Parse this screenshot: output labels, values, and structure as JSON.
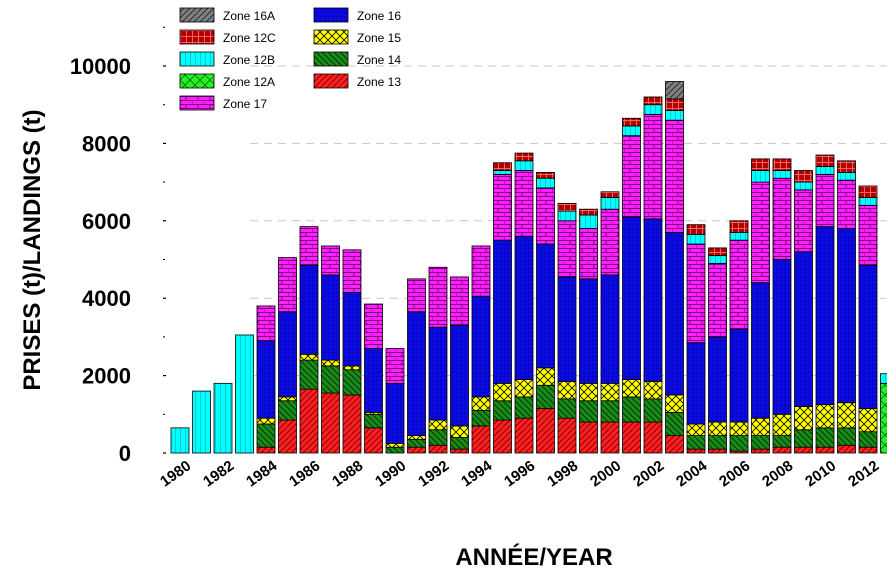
{
  "chart_data": {
    "type": "bar",
    "stacked": true,
    "xlabel": "ANNÉE/YEAR",
    "ylabel": "PRISES (t)/LANDINGS (t)",
    "ylim": [
      0,
      11000
    ],
    "y_ticks": [
      0,
      2000,
      4000,
      6000,
      8000,
      10000
    ],
    "x_tick_labels": [
      "1980",
      "1982",
      "1984",
      "1986",
      "1988",
      "1990",
      "1992",
      "1994",
      "1996",
      "1998",
      "2000",
      "2002",
      "2004",
      "2006",
      "2008",
      "2010",
      "2012"
    ],
    "grid": "horizontal dashed",
    "legend_position": "top-left",
    "categories": [
      "1980",
      "1981",
      "1982",
      "1983",
      "1984",
      "1985",
      "1986",
      "1987",
      "1988",
      "1989",
      "1990",
      "1991",
      "1992",
      "1993",
      "1994",
      "1995",
      "1996",
      "1997",
      "1998",
      "1999",
      "2000",
      "2001",
      "2002",
      "2003",
      "2004",
      "2005",
      "2006",
      "2007",
      "2008",
      "2009",
      "2010",
      "2011",
      "2012",
      "2013"
    ],
    "series": [
      {
        "name": "Zone 13",
        "color": "#ff2020",
        "values": [
          0,
          0,
          0,
          0,
          150,
          850,
          1650,
          1550,
          1500,
          650,
          0,
          150,
          200,
          100,
          700,
          850,
          900,
          1150,
          900,
          800,
          800,
          800,
          800,
          450,
          100,
          100,
          50,
          100,
          150,
          150,
          150,
          200,
          150,
          0
        ]
      },
      {
        "name": "Zone 14",
        "color": "#1a8c1a",
        "values": [
          0,
          0,
          0,
          0,
          600,
          500,
          750,
          700,
          650,
          350,
          150,
          200,
          400,
          300,
          400,
          500,
          550,
          600,
          500,
          550,
          550,
          650,
          600,
          600,
          350,
          350,
          400,
          350,
          300,
          450,
          500,
          450,
          400,
          0
        ]
      },
      {
        "name": "Zone 15",
        "color": "#ffff00",
        "values": [
          0,
          0,
          0,
          0,
          150,
          100,
          150,
          150,
          100,
          50,
          100,
          100,
          250,
          300,
          350,
          450,
          450,
          450,
          450,
          450,
          450,
          450,
          450,
          450,
          300,
          350,
          350,
          450,
          550,
          600,
          600,
          650,
          600,
          0
        ]
      },
      {
        "name": "Zone 16",
        "color": "#0a0ae0",
        "values": [
          0,
          0,
          0,
          0,
          2000,
          2200,
          2300,
          2200,
          1900,
          1650,
          1550,
          3200,
          2400,
          2600,
          2600,
          3700,
          3700,
          3200,
          2700,
          2700,
          2800,
          4200,
          4200,
          4200,
          2100,
          2200,
          2400,
          3500,
          4000,
          4000,
          4600,
          4500,
          3700,
          0
        ]
      },
      {
        "name": "Zone 17",
        "color": "#ff20ff",
        "values": [
          0,
          0,
          0,
          0,
          900,
          1400,
          1000,
          750,
          1100,
          1150,
          900,
          850,
          1550,
          1250,
          1300,
          1700,
          1700,
          1450,
          1450,
          1300,
          1700,
          2100,
          2700,
          2900,
          2550,
          1900,
          2300,
          2600,
          2100,
          1600,
          1350,
          1250,
          1550,
          0
        ]
      },
      {
        "name": "Zone 12A",
        "color": "#28f028",
        "values": [
          0,
          0,
          0,
          0,
          0,
          0,
          0,
          0,
          0,
          0,
          0,
          0,
          0,
          0,
          0,
          0,
          0,
          0,
          0,
          0,
          0,
          0,
          0,
          0,
          0,
          0,
          0,
          0,
          0,
          0,
          0,
          0,
          0,
          1800
        ]
      },
      {
        "name": "Zone 12B",
        "color": "#00ffff",
        "values": [
          650,
          1600,
          1800,
          3050,
          0,
          0,
          0,
          0,
          0,
          0,
          0,
          0,
          0,
          0,
          0,
          100,
          250,
          250,
          250,
          350,
          300,
          250,
          250,
          250,
          250,
          200,
          200,
          300,
          200,
          200,
          200,
          200,
          200,
          250
        ]
      },
      {
        "name": "Zone 12C",
        "color": "#b00000",
        "values": [
          0,
          0,
          0,
          0,
          0,
          0,
          0,
          0,
          0,
          0,
          0,
          0,
          0,
          0,
          0,
          200,
          200,
          150,
          200,
          150,
          150,
          200,
          200,
          300,
          250,
          200,
          300,
          300,
          300,
          300,
          300,
          300,
          300,
          0
        ]
      },
      {
        "name": "Zone 16A",
        "color": "#808080",
        "values": [
          0,
          0,
          0,
          0,
          0,
          0,
          0,
          0,
          0,
          0,
          0,
          0,
          0,
          0,
          0,
          0,
          0,
          0,
          0,
          0,
          0,
          0,
          0,
          450,
          0,
          0,
          0,
          0,
          0,
          0,
          0,
          0,
          0,
          0
        ]
      }
    ]
  }
}
